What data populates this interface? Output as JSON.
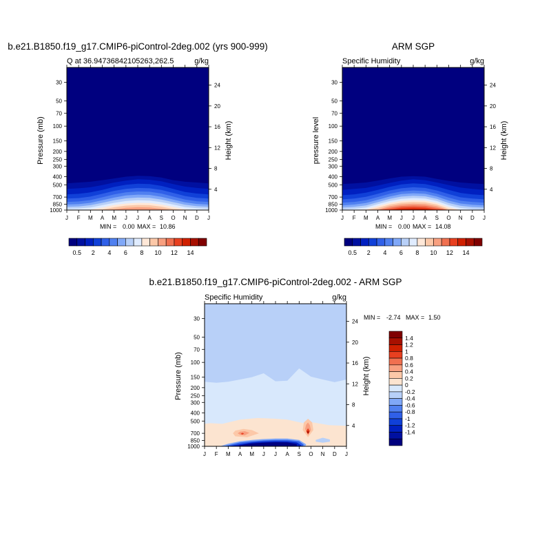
{
  "chart_data": [
    {
      "type": "contour",
      "title": "b.e21.B1850.f19_g17.CMIP6-piControl-2deg.002 (yrs 900-999)",
      "left_label": "Q at 36.94736842105263,262.5",
      "units": "g/kg",
      "ylabel": "Pressure (mb)",
      "ylabel_right": "Height (km)",
      "x_ticks": [
        "J",
        "F",
        "M",
        "A",
        "M",
        "J",
        "J",
        "A",
        "S",
        "O",
        "N",
        "D",
        "J"
      ],
      "y_ticks": [
        30,
        50,
        70,
        100,
        150,
        200,
        250,
        300,
        400,
        500,
        700,
        850,
        1000
      ],
      "ylim": [
        20,
        1000
      ],
      "y_scale": "log",
      "height_ticks": [
        4,
        8,
        12,
        16,
        20,
        24
      ],
      "min_label": "MIN =",
      "max_label": "MAX =",
      "min": "0.00",
      "max": "10.86",
      "bottom_pressure": [
        1000,
        1000,
        1000,
        1000,
        1000,
        1000,
        1000,
        1000,
        1000,
        1000,
        1000,
        1000,
        1000
      ],
      "contour_tops": [
        {
          "level": 0.5,
          "p": [
            480,
            470,
            460,
            440,
            420,
            400,
            390,
            395,
            410,
            440,
            460,
            470,
            480
          ]
        },
        {
          "level": 1,
          "p": [
            560,
            550,
            535,
            505,
            470,
            445,
            430,
            435,
            455,
            490,
            525,
            545,
            560
          ]
        },
        {
          "level": 2,
          "p": [
            650,
            640,
            615,
            575,
            530,
            500,
            485,
            490,
            515,
            560,
            610,
            635,
            650
          ]
        },
        {
          "level": 3,
          "p": [
            730,
            720,
            690,
            640,
            590,
            560,
            545,
            550,
            575,
            625,
            680,
            715,
            730
          ]
        },
        {
          "level": 4,
          "p": [
            800,
            790,
            760,
            705,
            650,
            615,
            600,
            605,
            635,
            690,
            750,
            785,
            800
          ]
        },
        {
          "level": 5,
          "p": [
            860,
            850,
            820,
            765,
            710,
            670,
            655,
            660,
            695,
            750,
            810,
            845,
            860
          ]
        },
        {
          "level": 6,
          "p": [
            915,
            905,
            875,
            820,
            765,
            725,
            710,
            715,
            750,
            805,
            865,
            900,
            915
          ]
        },
        {
          "level": 7,
          "p": [
            965,
            955,
            930,
            875,
            820,
            780,
            765,
            770,
            805,
            860,
            920,
            950,
            965
          ]
        },
        {
          "level": 8,
          "p": [
            1000,
            1000,
            985,
            930,
            870,
            835,
            820,
            825,
            860,
            915,
            975,
            1000,
            1000
          ]
        },
        {
          "level": 9,
          "p": [
            1000,
            1000,
            1000,
            985,
            925,
            885,
            870,
            875,
            910,
            970,
            1000,
            1000,
            1000
          ]
        },
        {
          "level": 10,
          "p": [
            1000,
            1000,
            1000,
            1000,
            980,
            940,
            925,
            930,
            965,
            1000,
            1000,
            1000,
            1000
          ]
        }
      ]
    },
    {
      "type": "contour",
      "title": "ARM SGP",
      "left_label": "Specific Humidity",
      "units": "g/kg",
      "ylabel": "pressure level",
      "ylabel_right": "Height (km)",
      "x_ticks": [
        "J",
        "F",
        "M",
        "A",
        "M",
        "J",
        "J",
        "A",
        "S",
        "O",
        "N",
        "D",
        "J"
      ],
      "y_ticks": [
        30,
        50,
        70,
        100,
        150,
        200,
        250,
        300,
        400,
        500,
        700,
        850,
        1000
      ],
      "ylim": [
        20,
        1000
      ],
      "y_scale": "log",
      "height_ticks": [
        4,
        8,
        12,
        16,
        20,
        24
      ],
      "min_label": "MIN =",
      "max_label": "MAX =",
      "min": "0.00",
      "max": "14.08",
      "bottom_pressure": [
        1000,
        1000,
        1000,
        1000,
        1000,
        1000,
        1000,
        1000,
        1000,
        1000,
        1000,
        1000,
        1000
      ],
      "contour_tops": [
        {
          "level": 0.5,
          "p": [
            490,
            480,
            470,
            445,
            420,
            400,
            395,
            400,
            425,
            450,
            470,
            480,
            490
          ]
        },
        {
          "level": 1,
          "p": [
            575,
            560,
            545,
            510,
            475,
            445,
            430,
            440,
            470,
            505,
            540,
            560,
            575
          ]
        },
        {
          "level": 2,
          "p": [
            665,
            650,
            620,
            575,
            530,
            495,
            480,
            490,
            525,
            575,
            625,
            650,
            665
          ]
        },
        {
          "level": 3,
          "p": [
            745,
            730,
            695,
            640,
            585,
            550,
            535,
            545,
            585,
            645,
            705,
            730,
            745
          ]
        },
        {
          "level": 4,
          "p": [
            815,
            800,
            765,
            700,
            640,
            600,
            585,
            595,
            640,
            710,
            775,
            800,
            815
          ]
        },
        {
          "level": 5,
          "p": [
            880,
            860,
            825,
            755,
            690,
            645,
            630,
            640,
            690,
            770,
            835,
            865,
            880
          ]
        },
        {
          "level": 6,
          "p": [
            935,
            915,
            880,
            805,
            735,
            690,
            675,
            685,
            735,
            825,
            890,
            920,
            935
          ]
        },
        {
          "level": 7,
          "p": [
            985,
            965,
            930,
            850,
            780,
            735,
            720,
            730,
            780,
            875,
            945,
            975,
            985
          ]
        },
        {
          "level": 8,
          "p": [
            1000,
            1000,
            980,
            895,
            820,
            775,
            760,
            770,
            820,
            920,
            995,
            1000,
            1000
          ]
        },
        {
          "level": 9,
          "p": [
            1000,
            1000,
            1000,
            940,
            860,
            815,
            800,
            810,
            860,
            965,
            1000,
            1000,
            1000
          ]
        },
        {
          "level": 10,
          "p": [
            1000,
            1000,
            1000,
            985,
            900,
            855,
            840,
            850,
            900,
            1000,
            1000,
            1000,
            1000
          ]
        },
        {
          "level": 11,
          "p": [
            1000,
            1000,
            1000,
            1000,
            940,
            895,
            880,
            890,
            940,
            1000,
            1000,
            1000,
            1000
          ]
        },
        {
          "level": 12,
          "p": [
            1000,
            1000,
            1000,
            1000,
            980,
            935,
            920,
            930,
            975,
            1000,
            1000,
            1000,
            1000
          ]
        },
        {
          "level": 13,
          "p": [
            1000,
            1000,
            1000,
            1000,
            1000,
            970,
            955,
            965,
            1000,
            1000,
            1000,
            1000,
            1000
          ]
        }
      ]
    },
    {
      "type": "contour",
      "title": "b.e21.B1850.f19_g17.CMIP6-piControl-2deg.002 - ARM SGP",
      "left_label": "Specific Humidity",
      "units": "g/kg",
      "ylabel": "Pressure (mb)",
      "ylabel_right": "Height (km)",
      "x_ticks": [
        "J",
        "F",
        "M",
        "A",
        "M",
        "J",
        "J",
        "A",
        "S",
        "O",
        "N",
        "D",
        "J"
      ],
      "y_ticks": [
        30,
        50,
        70,
        100,
        150,
        200,
        250,
        300,
        400,
        500,
        700,
        850,
        1000
      ],
      "ylim": [
        20,
        1000
      ],
      "y_scale": "log",
      "height_ticks": [
        4,
        8,
        12,
        16,
        20,
        24
      ],
      "min_label": "MIN =",
      "max_label": "MAX =",
      "min": "-2.74",
      "max": "1.50",
      "regions": [
        {
          "level": 0.1,
          "x": [
            0,
            1,
            2,
            3,
            4,
            5,
            6,
            7,
            8,
            9,
            10,
            11,
            12,
            12,
            0
          ],
          "p": [
            170,
            175,
            170,
            160,
            150,
            135,
            168,
            165,
            118,
            148,
            160,
            172,
            160,
            1000,
            1000
          ]
        },
        {
          "level": 0.3,
          "x": [
            0,
            0.5,
            1.5,
            3,
            4.5,
            6,
            7,
            8.6,
            9.2,
            10.5,
            12,
            12,
            0
          ],
          "p": [
            540,
            530,
            540,
            480,
            460,
            470,
            480,
            540,
            520,
            560,
            570,
            1000,
            1000
          ]
        },
        {
          "level": 0.5,
          "x": [
            2.4,
            2.6,
            3.3,
            4,
            4.6,
            3.6,
            2.6
          ],
          "p": [
            700,
            650,
            620,
            640,
            700,
            780,
            760
          ]
        },
        {
          "level": 0.5,
          "x": [
            8.3,
            8.4,
            8.75,
            9.1,
            9.2,
            8.75
          ],
          "p": [
            640,
            520,
            470,
            520,
            640,
            780
          ]
        },
        {
          "level": 0.7,
          "x": [
            2.8,
            3,
            3.4,
            3.8,
            3.4,
            3
          ],
          "p": [
            700,
            670,
            660,
            690,
            740,
            730
          ]
        },
        {
          "level": 0.7,
          "x": [
            8.5,
            8.6,
            8.75,
            8.9,
            9,
            8.75
          ],
          "p": [
            620,
            550,
            520,
            560,
            640,
            740
          ]
        },
        {
          "level": 1.1,
          "x": [
            3.05,
            3.2,
            3.35,
            3.2
          ],
          "p": [
            710,
            690,
            705,
            725
          ]
        },
        {
          "level": 1.1,
          "x": [
            8.6,
            8.75,
            8.9,
            8.75
          ],
          "p": [
            660,
            610,
            660,
            720
          ]
        },
        {
          "level": 1.5,
          "x": [
            8.65,
            8.75,
            8.85,
            8.75
          ],
          "p": [
            680,
            650,
            680,
            705
          ]
        },
        {
          "level": -0.3,
          "x": [
            1.3,
            2,
            3,
            4,
            5,
            6,
            7,
            8,
            8.6,
            8.5,
            8,
            7,
            6,
            5,
            4,
            3,
            2,
            1.3
          ],
          "p": [
            1000,
            930,
            870,
            840,
            820,
            810,
            810,
            840,
            950,
            1000,
            1000,
            1000,
            1000,
            1000,
            1000,
            1000,
            1000,
            1000
          ]
        },
        {
          "level": -0.7,
          "x": [
            1.6,
            2.2,
            3,
            4,
            5,
            6,
            7,
            8,
            8.4,
            8.3,
            8,
            7,
            6,
            5,
            4,
            3,
            2.2,
            1.6
          ],
          "p": [
            1000,
            955,
            900,
            870,
            850,
            840,
            840,
            870,
            960,
            1000,
            1000,
            1000,
            1000,
            1000,
            1000,
            1000,
            1000,
            1000
          ]
        },
        {
          "level": -1.1,
          "x": [
            2,
            2.6,
            3.3,
            4,
            5,
            6,
            7,
            7.8,
            8.2,
            8.1,
            7.5,
            6.5,
            5.5,
            4.5,
            3.5,
            2.6,
            2
          ],
          "p": [
            1000,
            965,
            930,
            900,
            880,
            870,
            875,
            900,
            975,
            1000,
            1000,
            1000,
            1000,
            1000,
            1000,
            1000,
            1000
          ]
        },
        {
          "level": -1.5,
          "x": [
            2.6,
            3.3,
            4,
            5,
            6,
            7,
            7.8,
            7.8,
            6.8,
            5.8,
            4.8,
            3.8,
            3,
            2.6
          ],
          "p": [
            1000,
            955,
            925,
            905,
            895,
            900,
            940,
            1000,
            1000,
            1000,
            1000,
            1000,
            1000,
            1000
          ]
        },
        {
          "level": -0.1,
          "x": [
            9.4,
            10,
            10.6,
            10.6,
            10,
            9.4
          ],
          "p": [
            840,
            790,
            830,
            880,
            905,
            880
          ]
        }
      ]
    }
  ],
  "colorbar_top": {
    "colors": [
      "#00007f",
      "#0010a0",
      "#0020c0",
      "#1040d8",
      "#3060e8",
      "#5080f0",
      "#80a8f8",
      "#b8d0f8",
      "#e0ecff",
      "#ffe8d8",
      "#fcc8a8",
      "#f8a080",
      "#f07050",
      "#e84020",
      "#d02000",
      "#a81000",
      "#800000"
    ],
    "labels": [
      "0.5",
      "2",
      "4",
      "6",
      "8",
      "10",
      "12",
      "14"
    ],
    "bounds": [
      0.5,
      1,
      2,
      3,
      4,
      5,
      6,
      7,
      8,
      9,
      10,
      11,
      12,
      13,
      14,
      15
    ]
  },
  "colorbar_diff": {
    "colors": [
      "#00007f",
      "#0010a0",
      "#0020c0",
      "#1040d8",
      "#3060e8",
      "#5080f0",
      "#80a8f8",
      "#b8d0f8",
      "#d8e8fc",
      "#fce4d0",
      "#fcc8a8",
      "#f8a080",
      "#f07050",
      "#e84020",
      "#d02000",
      "#a81000",
      "#800000"
    ],
    "labels": [
      "-1.4",
      "-1.2",
      "-1",
      "-0.8",
      "-0.6",
      "-0.4",
      "-0.2",
      "0",
      "0.2",
      "0.4",
      "0.6",
      "0.8",
      "1",
      "1.2",
      "1.4"
    ]
  }
}
